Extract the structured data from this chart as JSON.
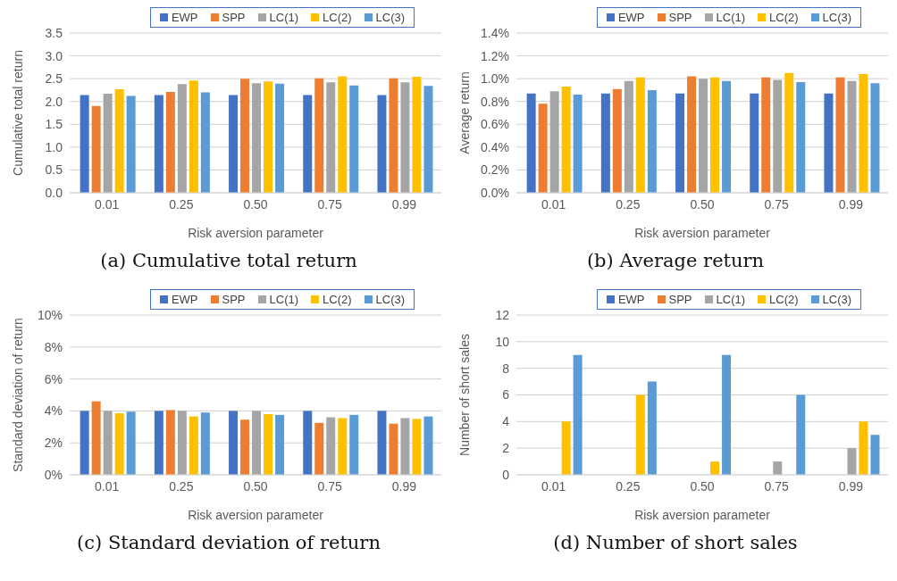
{
  "chart_data": [
    {
      "type": "bar",
      "title": "(a) Cumulative total return",
      "xlabel": "Risk aversion parameter",
      "ylabel": "Cumulative total return",
      "categories": [
        "0.01",
        "0.25",
        "0.50",
        "0.75",
        "0.99"
      ],
      "series": [
        {
          "name": "EWP",
          "color": "#4472c4",
          "values": [
            2.14,
            2.14,
            2.14,
            2.14,
            2.14
          ]
        },
        {
          "name": "SPP",
          "color": "#ed7d31",
          "values": [
            1.9,
            2.21,
            2.5,
            2.51,
            2.51
          ]
        },
        {
          "name": "LC(1)",
          "color": "#a5a5a5",
          "values": [
            2.17,
            2.38,
            2.4,
            2.42,
            2.42
          ]
        },
        {
          "name": "LC(2)",
          "color": "#ffc000",
          "values": [
            2.27,
            2.46,
            2.44,
            2.55,
            2.54
          ]
        },
        {
          "name": "LC(3)",
          "color": "#5b9bd5",
          "values": [
            2.12,
            2.2,
            2.39,
            2.35,
            2.34
          ]
        }
      ],
      "ylim": [
        0,
        3.5
      ],
      "yticks": [
        {
          "value": 0,
          "label": "0.0"
        },
        {
          "value": 0.5,
          "label": "0.5"
        },
        {
          "value": 1,
          "label": "1.0"
        },
        {
          "value": 1.5,
          "label": "1.5"
        },
        {
          "value": 2,
          "label": "2.0"
        },
        {
          "value": 2.5,
          "label": "2.5"
        },
        {
          "value": 3,
          "label": "3.0"
        },
        {
          "value": 3.5,
          "label": "3.5"
        }
      ],
      "grid": "y",
      "legend": "top"
    },
    {
      "type": "bar",
      "title": "(b) Average return",
      "xlabel": "Risk aversion parameter",
      "ylabel": "Average return",
      "categories": [
        "0.01",
        "0.25",
        "0.50",
        "0.75",
        "0.99"
      ],
      "series": [
        {
          "name": "EWP",
          "color": "#4472c4",
          "values": [
            0.87,
            0.87,
            0.87,
            0.87,
            0.87
          ]
        },
        {
          "name": "SPP",
          "color": "#ed7d31",
          "values": [
            0.78,
            0.91,
            1.02,
            1.01,
            1.01
          ]
        },
        {
          "name": "LC(1)",
          "color": "#a5a5a5",
          "values": [
            0.89,
            0.98,
            1.0,
            0.99,
            0.98
          ]
        },
        {
          "name": "LC(2)",
          "color": "#ffc000",
          "values": [
            0.93,
            1.01,
            1.01,
            1.05,
            1.04
          ]
        },
        {
          "name": "LC(3)",
          "color": "#5b9bd5",
          "values": [
            0.86,
            0.9,
            0.98,
            0.97,
            0.96
          ]
        }
      ],
      "ylim": [
        0,
        1.4
      ],
      "yticks": [
        {
          "value": 0,
          "label": "0.0%"
        },
        {
          "value": 0.2,
          "label": "0.2%"
        },
        {
          "value": 0.4,
          "label": "0.4%"
        },
        {
          "value": 0.6,
          "label": "0.6%"
        },
        {
          "value": 0.8,
          "label": "0.8%"
        },
        {
          "value": 1,
          "label": "1.0%"
        },
        {
          "value": 1.2,
          "label": "1.2%"
        },
        {
          "value": 1.4,
          "label": "1.4%"
        }
      ],
      "grid": "y",
      "legend": "top"
    },
    {
      "type": "bar",
      "title": "(c) Standard deviation of return",
      "xlabel": "Risk aversion parameter",
      "ylabel": "Standard deviation of return",
      "categories": [
        "0.01",
        "0.25",
        "0.50",
        "0.75",
        "0.99"
      ],
      "series": [
        {
          "name": "EWP",
          "color": "#4472c4",
          "values": [
            4.0,
            4.0,
            4.0,
            4.0,
            4.0
          ]
        },
        {
          "name": "SPP",
          "color": "#ed7d31",
          "values": [
            4.6,
            4.05,
            3.45,
            3.25,
            3.2
          ]
        },
        {
          "name": "LC(1)",
          "color": "#a5a5a5",
          "values": [
            4.0,
            4.0,
            4.0,
            3.6,
            3.55
          ]
        },
        {
          "name": "LC(2)",
          "color": "#ffc000",
          "values": [
            3.85,
            3.65,
            3.8,
            3.55,
            3.5
          ]
        },
        {
          "name": "LC(3)",
          "color": "#5b9bd5",
          "values": [
            3.95,
            3.9,
            3.75,
            3.75,
            3.65
          ]
        }
      ],
      "ylim": [
        0,
        10
      ],
      "yticks": [
        {
          "value": 0,
          "label": "0%"
        },
        {
          "value": 2,
          "label": "2%"
        },
        {
          "value": 4,
          "label": "4%"
        },
        {
          "value": 6,
          "label": "6%"
        },
        {
          "value": 8,
          "label": "8%"
        },
        {
          "value": 10,
          "label": "10%"
        }
      ],
      "grid": "y",
      "legend": "top"
    },
    {
      "type": "bar",
      "title": "(d) Number of short sales",
      "xlabel": "Risk aversion parameter",
      "ylabel": "Number of short sales",
      "categories": [
        "0.01",
        "0.25",
        "0.50",
        "0.75",
        "0.99"
      ],
      "series": [
        {
          "name": "EWP",
          "color": "#4472c4",
          "values": [
            0,
            0,
            0,
            0,
            0
          ]
        },
        {
          "name": "SPP",
          "color": "#ed7d31",
          "values": [
            0,
            0,
            0,
            0,
            0
          ]
        },
        {
          "name": "LC(1)",
          "color": "#a5a5a5",
          "values": [
            0,
            0,
            0,
            1,
            2
          ]
        },
        {
          "name": "LC(2)",
          "color": "#ffc000",
          "values": [
            4,
            6,
            1,
            0,
            4
          ]
        },
        {
          "name": "LC(3)",
          "color": "#5b9bd5",
          "values": [
            9,
            7,
            9,
            6,
            3
          ]
        }
      ],
      "ylim": [
        0,
        12
      ],
      "yticks": [
        0,
        2,
        4,
        6,
        8,
        10,
        12
      ],
      "grid": "y",
      "legend": "top"
    }
  ]
}
